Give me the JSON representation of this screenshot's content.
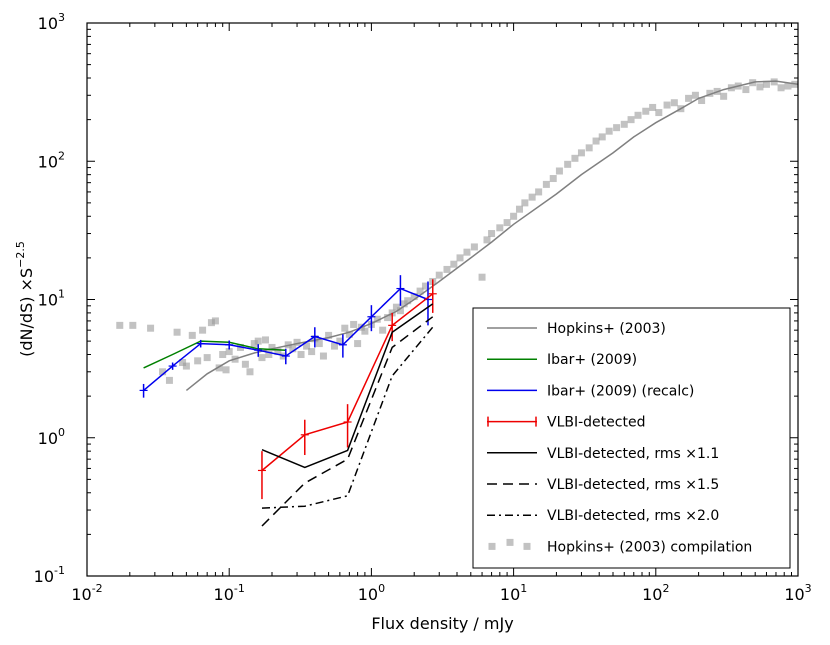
{
  "chart_data": {
    "type": "line",
    "title": "",
    "xlabel": "Flux density / mJy",
    "ylabel_main": "(dN/dS) ×S",
    "ylabel_exp": "−2.5",
    "xscale": "log",
    "yscale": "log",
    "xlim": [
      0.01,
      1000
    ],
    "ylim": [
      0.1,
      1000
    ],
    "grid": false,
    "legend_position": "bottom-right",
    "x_ticks": [
      {
        "value": 0.01,
        "base": "10",
        "exp": "-2"
      },
      {
        "value": 0.1,
        "base": "10",
        "exp": "-1"
      },
      {
        "value": 1,
        "base": "10",
        "exp": "0"
      },
      {
        "value": 10,
        "base": "10",
        "exp": "1"
      },
      {
        "value": 100,
        "base": "10",
        "exp": "2"
      },
      {
        "value": 1000,
        "base": "10",
        "exp": "3"
      }
    ],
    "y_ticks": [
      {
        "value": 0.1,
        "base": "10",
        "exp": "-1"
      },
      {
        "value": 1,
        "base": "10",
        "exp": "0"
      },
      {
        "value": 10,
        "base": "10",
        "exp": "1"
      },
      {
        "value": 100,
        "base": "10",
        "exp": "2"
      },
      {
        "value": 1000,
        "base": "10",
        "exp": "3"
      }
    ],
    "series": [
      {
        "name": "Hopkins+ (2003)",
        "color": "#808080",
        "style": "solid",
        "kind": "line",
        "x": [
          0.05,
          0.07,
          0.1,
          0.15,
          0.2,
          0.3,
          0.5,
          0.7,
          1,
          1.5,
          2,
          3,
          5,
          7,
          10,
          20,
          30,
          50,
          70,
          100,
          150,
          200,
          300,
          500,
          700,
          1000
        ],
        "y": [
          2.2,
          2.9,
          3.6,
          4.1,
          4.4,
          4.8,
          5.3,
          5.8,
          6.7,
          8.2,
          10,
          13.5,
          20,
          26,
          35,
          58,
          80,
          115,
          150,
          190,
          240,
          285,
          330,
          375,
          380,
          360
        ]
      },
      {
        "name": "Ibar+ (2009)",
        "color": "#008000",
        "style": "solid",
        "kind": "line",
        "x": [
          0.025,
          0.04,
          0.063,
          0.1,
          0.16,
          0.25
        ],
        "y": [
          3.2,
          4.0,
          5.0,
          4.9,
          4.4,
          4.3
        ]
      },
      {
        "name": "Ibar+ (2009) (recalc)",
        "color": "#0000ee",
        "style": "solid",
        "kind": "errorline",
        "x": [
          0.025,
          0.04,
          0.063,
          0.1,
          0.16,
          0.25,
          0.4,
          0.63,
          1.0,
          1.6,
          2.5
        ],
        "y": [
          2.2,
          3.3,
          4.8,
          4.7,
          4.3,
          3.9,
          5.4,
          4.7,
          7.5,
          12,
          10
        ],
        "yerr": [
          0.25,
          0.2,
          0.3,
          0.35,
          0.45,
          0.5,
          0.9,
          0.9,
          1.6,
          3.0,
          3.5
        ]
      },
      {
        "name": "VLBI-detected",
        "color": "#ee0000",
        "style": "solid",
        "kind": "errorline",
        "x": [
          0.17,
          0.34,
          0.68,
          1.4,
          2.7
        ],
        "y": [
          0.58,
          1.05,
          1.3,
          6.5,
          11
        ],
        "yerr": [
          0.22,
          0.3,
          0.45,
          1.5,
          3.0
        ]
      },
      {
        "name": "VLBI-detected, rms ×1.1",
        "color": "#000000",
        "style": "solid",
        "kind": "line",
        "x": [
          0.17,
          0.34,
          0.68,
          1.4,
          2.7
        ],
        "y": [
          0.82,
          0.61,
          0.81,
          5.8,
          9.3
        ]
      },
      {
        "name": "VLBI-detected, rms ×1.5",
        "color": "#000000",
        "style": "dashed",
        "kind": "line",
        "x": [
          0.17,
          0.34,
          0.68,
          1.4,
          2.7
        ],
        "y": [
          0.23,
          0.47,
          0.7,
          4.5,
          7.5
        ]
      },
      {
        "name": "VLBI-detected, rms ×2.0",
        "color": "#000000",
        "style": "dashdot",
        "kind": "line",
        "x": [
          0.17,
          0.34,
          0.68,
          1.4,
          2.7
        ],
        "y": [
          0.31,
          0.32,
          0.38,
          2.8,
          6.3
        ]
      },
      {
        "name": "Hopkins+ (2003) compilation",
        "color": "#999999",
        "style": "none",
        "kind": "scatter",
        "x": [
          0.017,
          0.021,
          0.028,
          0.034,
          0.038,
          0.043,
          0.047,
          0.05,
          0.055,
          0.06,
          0.065,
          0.07,
          0.075,
          0.08,
          0.085,
          0.09,
          0.095,
          0.1,
          0.11,
          0.12,
          0.13,
          0.14,
          0.15,
          0.16,
          0.17,
          0.18,
          0.19,
          0.2,
          0.22,
          0.24,
          0.26,
          0.28,
          0.3,
          0.32,
          0.35,
          0.38,
          0.4,
          0.43,
          0.46,
          0.5,
          0.55,
          0.6,
          0.65,
          0.7,
          0.75,
          0.8,
          0.85,
          0.9,
          1.0,
          1.1,
          1.2,
          1.3,
          1.4,
          1.5,
          1.6,
          1.7,
          1.8,
          2.0,
          2.2,
          2.4,
          2.7,
          3.0,
          3.4,
          3.8,
          4.2,
          4.7,
          5.3,
          6.0,
          6.5,
          7.0,
          8.0,
          9.0,
          10,
          11,
          12,
          13.5,
          15,
          17,
          19,
          21,
          24,
          27,
          30,
          34,
          38,
          42,
          47,
          53,
          60,
          67,
          75,
          85,
          95,
          105,
          120,
          135,
          150,
          170,
          190,
          210,
          240,
          270,
          300,
          340,
          380,
          430,
          480,
          540,
          600,
          680,
          760,
          850,
          950
        ],
        "y": [
          6.5,
          6.5,
          6.2,
          3.0,
          2.6,
          5.8,
          3.5,
          3.3,
          5.5,
          3.6,
          6.0,
          3.8,
          6.8,
          7.0,
          3.2,
          4.0,
          3.1,
          4.2,
          3.7,
          4.5,
          3.4,
          3.0,
          4.8,
          5.0,
          3.8,
          5.1,
          4.0,
          4.5,
          4.2,
          3.9,
          4.7,
          4.4,
          4.9,
          4.0,
          4.6,
          4.2,
          5.2,
          4.8,
          3.9,
          5.5,
          4.6,
          5.0,
          6.2,
          5.6,
          6.6,
          4.8,
          6.3,
          5.9,
          6.6,
          7.2,
          6.0,
          7.4,
          8.0,
          8.8,
          8.3,
          9.3,
          9.8,
          10.5,
          11.5,
          12.5,
          13.5,
          15,
          16.5,
          18,
          20,
          22,
          24,
          14.5,
          27,
          30,
          33,
          36,
          40,
          45,
          50,
          55,
          60,
          68,
          75,
          85,
          95,
          105,
          115,
          125,
          140,
          150,
          165,
          175,
          185,
          200,
          215,
          230,
          245,
          225,
          255,
          265,
          240,
          285,
          300,
          275,
          310,
          320,
          295,
          340,
          350,
          330,
          370,
          345,
          360,
          375,
          340,
          350,
          360
        ]
      }
    ]
  }
}
